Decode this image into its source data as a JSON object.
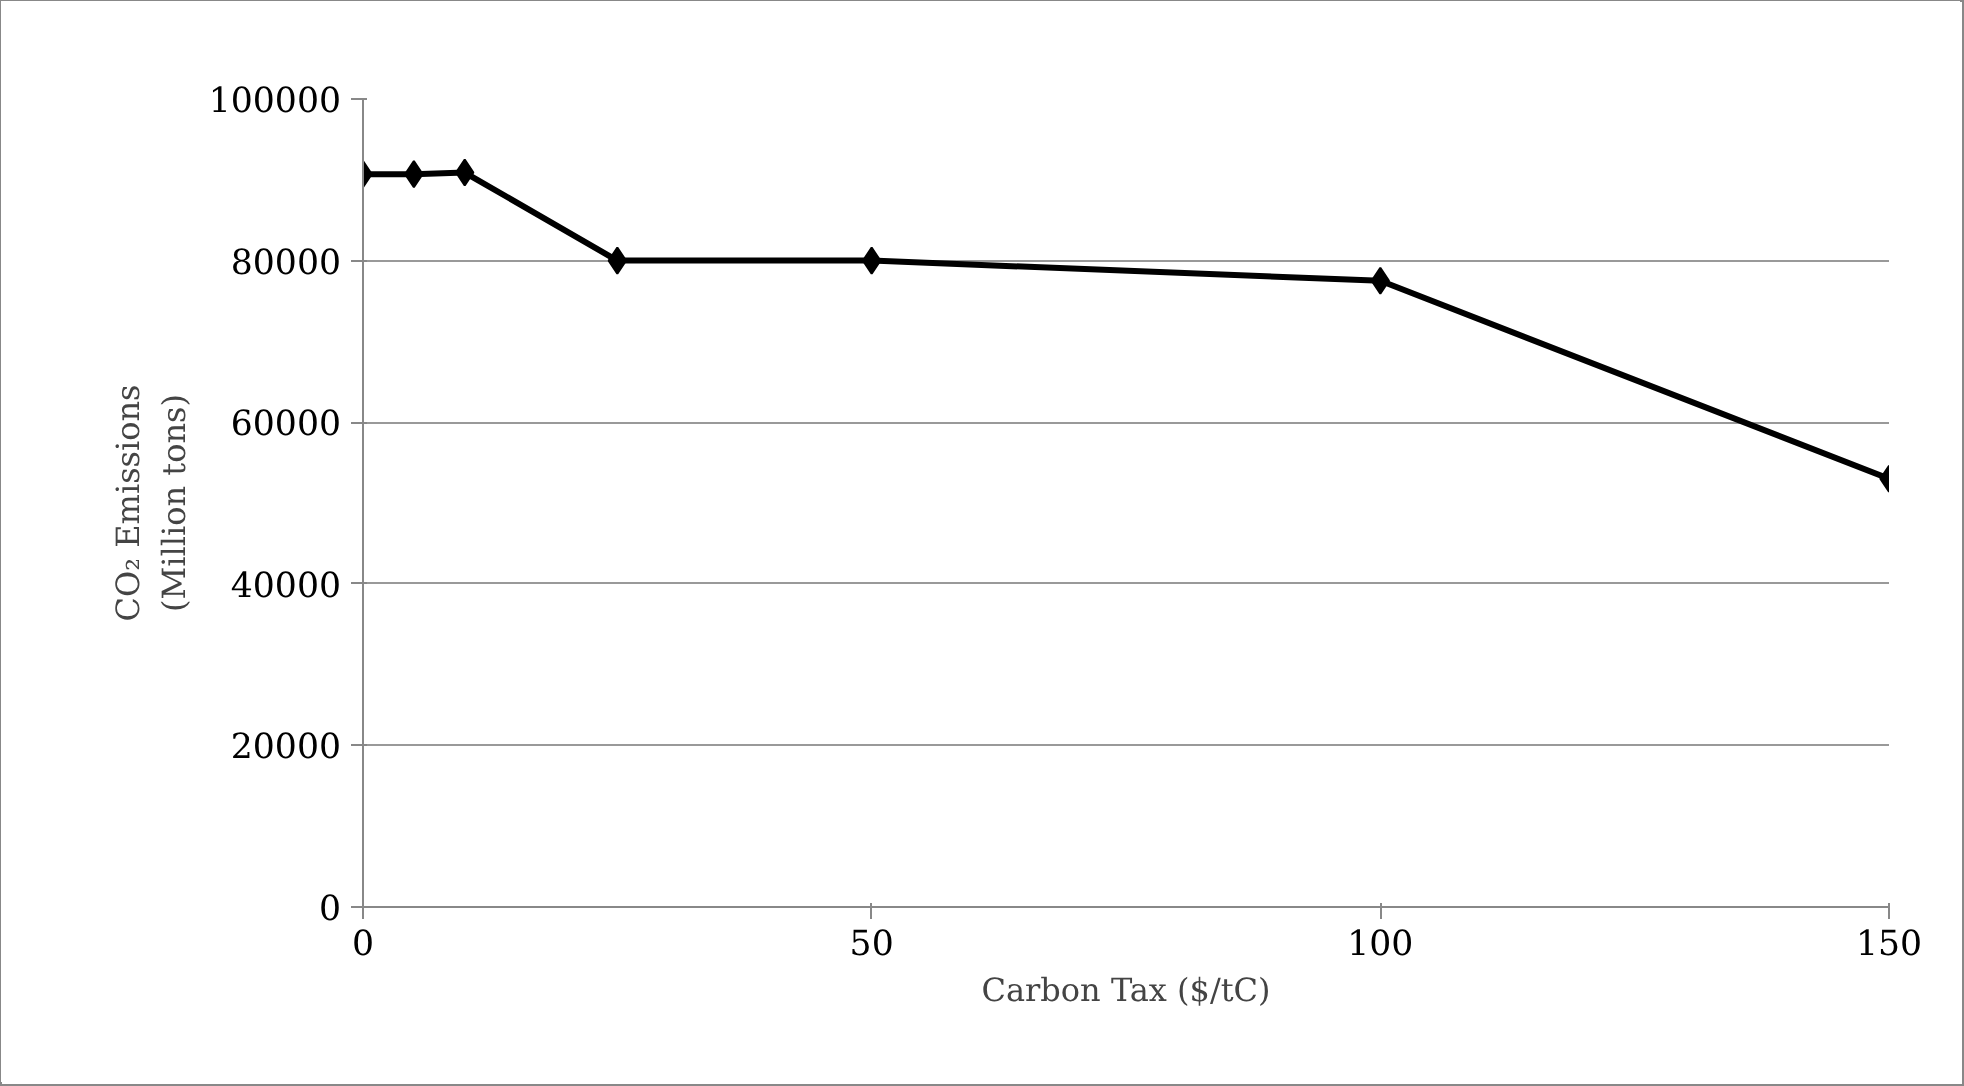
{
  "chart_data": {
    "type": "line",
    "xlabel": "Carbon Tax ($/tC)",
    "ylabel": "CO₂ Emissions\n(Million tons)",
    "x": [
      0,
      5,
      10,
      25,
      50,
      100,
      150
    ],
    "series": [
      {
        "color": "#000000",
        "values": [
          90700,
          90700,
          90900,
          80000,
          80000,
          77500,
          53000
        ]
      }
    ],
    "xlim": [
      0,
      150
    ],
    "xticks": [
      0,
      50,
      100,
      150
    ],
    "ylim": [
      0,
      100000
    ],
    "yticks": [
      0,
      20000,
      40000,
      60000,
      80000,
      100000
    ],
    "grid": "y",
    "marker": "diamond",
    "line_style": "solid"
  }
}
